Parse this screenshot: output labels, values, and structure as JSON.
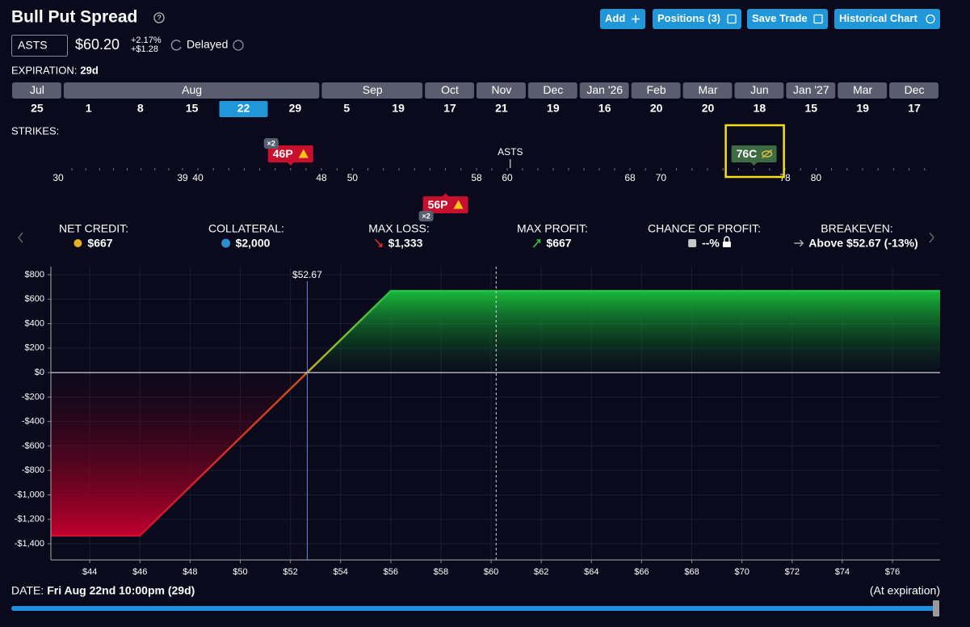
{
  "header": {
    "title": "Bull Put Spread",
    "ticker": "ASTS",
    "price": "$60.20",
    "change_pct": "+2.17%",
    "change_abs": "+$1.28",
    "status": "Delayed",
    "buttons": [
      "Add",
      "Positions (3)",
      "Save Trade",
      "Historical Chart"
    ]
  },
  "expiration": {
    "label": "EXPIRATION:",
    "value": "29d"
  },
  "months": [
    {
      "month": "Jul",
      "days": [
        {
          "day": "25"
        }
      ]
    },
    {
      "month": "Aug",
      "days": [
        {
          "day": "1"
        },
        {
          "day": "8"
        },
        {
          "day": "15"
        },
        {
          "day": "22",
          "selected": true
        },
        {
          "day": "29"
        }
      ]
    },
    {
      "month": "Sep",
      "days": [
        {
          "day": "5"
        },
        {
          "day": "19"
        }
      ]
    },
    {
      "month": "Oct",
      "days": [
        {
          "day": "17"
        }
      ]
    },
    {
      "month": "Nov",
      "days": [
        {
          "day": "21"
        }
      ]
    },
    {
      "month": "Dec",
      "days": [
        {
          "day": "19"
        }
      ]
    },
    {
      "month": "Jan '26",
      "days": [
        {
          "day": "16"
        }
      ]
    },
    {
      "month": "Feb",
      "days": [
        {
          "day": "20"
        }
      ]
    },
    {
      "month": "Mar",
      "days": [
        {
          "day": "20"
        }
      ]
    },
    {
      "month": "Jun",
      "days": [
        {
          "day": "18"
        }
      ]
    },
    {
      "month": "Jan '27",
      "days": [
        {
          "day": "15"
        }
      ]
    },
    {
      "month": "Mar",
      "days": [
        {
          "day": "19"
        }
      ]
    },
    {
      "month": "Dec",
      "days": [
        {
          "day": "17"
        }
      ]
    }
  ],
  "strikes": {
    "label": "STRIKES:",
    "ruler_labels": [
      30,
      39,
      40,
      48,
      50,
      58,
      60,
      68,
      70,
      78,
      80
    ],
    "underlying": {
      "label": "ASTS",
      "value": 60.2
    },
    "legs": [
      {
        "label": "46P",
        "strike": 46,
        "qty": "×2",
        "side": "top",
        "warning": true
      },
      {
        "label": "56P",
        "strike": 56,
        "qty": "×2",
        "side": "bottom",
        "warning": true
      },
      {
        "label": "76C",
        "strike": 76,
        "side": "top",
        "hidden": true,
        "highlighted": true
      }
    ]
  },
  "stats": [
    {
      "label": "NET CREDIT:",
      "value": "$667",
      "icon": "coins"
    },
    {
      "label": "COLLATERAL:",
      "value": "$2,000",
      "icon": "pie"
    },
    {
      "label": "MAX LOSS:",
      "value": "$1,333",
      "icon": "down"
    },
    {
      "label": "MAX PROFIT:",
      "value": "$667",
      "icon": "up"
    },
    {
      "label": "CHANCE OF PROFIT:",
      "value": "--%",
      "icon": "dice",
      "locked": true
    },
    {
      "label": "BREAKEVEN:",
      "value": "Above $52.67 (-13%)",
      "icon": "arrow"
    }
  ],
  "chart_data": {
    "type": "line",
    "x": [
      42.45,
      46,
      56,
      77.9
    ],
    "series": [
      {
        "name": "P/L",
        "values": [
          -1333,
          -1333,
          667,
          667
        ]
      }
    ],
    "xlim": [
      42.45,
      77.9
    ],
    "ylim": [
      -1532,
      866
    ],
    "xticks": [
      {
        "value": 44,
        "label": "$44"
      },
      {
        "value": 46,
        "label": "$46"
      },
      {
        "value": 48,
        "label": "$48"
      },
      {
        "value": 50,
        "label": "$50"
      },
      {
        "value": 52,
        "label": "$52"
      },
      {
        "value": 54,
        "label": "$54"
      },
      {
        "value": 56,
        "label": "$56"
      },
      {
        "value": 58,
        "label": "$58"
      },
      {
        "value": 60,
        "label": "$60"
      },
      {
        "value": 62,
        "label": "$62"
      },
      {
        "value": 64,
        "label": "$64"
      },
      {
        "value": 66,
        "label": "$66"
      },
      {
        "value": 68,
        "label": "$68"
      },
      {
        "value": 70,
        "label": "$70"
      },
      {
        "value": 72,
        "label": "$72"
      },
      {
        "value": 74,
        "label": "$74"
      },
      {
        "value": 76,
        "label": "$76"
      }
    ],
    "yticks": [
      {
        "value": 800,
        "label": "$800"
      },
      {
        "value": 600,
        "label": "$600"
      },
      {
        "value": 400,
        "label": "$400"
      },
      {
        "value": 200,
        "label": "$200"
      },
      {
        "value": 0,
        "label": "$0"
      },
      {
        "value": -200,
        "label": "-$200"
      },
      {
        "value": -400,
        "label": "-$400"
      },
      {
        "value": -600,
        "label": "-$600"
      },
      {
        "value": -800,
        "label": "-$800"
      },
      {
        "value": -1000,
        "label": "-$1,000"
      },
      {
        "value": -1200,
        "label": "-$1,200"
      },
      {
        "value": -1400,
        "label": "-$1,400"
      }
    ],
    "grid": true,
    "breakeven": {
      "value": 52.67,
      "label": "$52.67"
    },
    "price_line": 60.2
  },
  "footer": {
    "label": "DATE:",
    "value": "Fri Aug 22nd 10:00pm (29d)",
    "note": "(At expiration)"
  }
}
